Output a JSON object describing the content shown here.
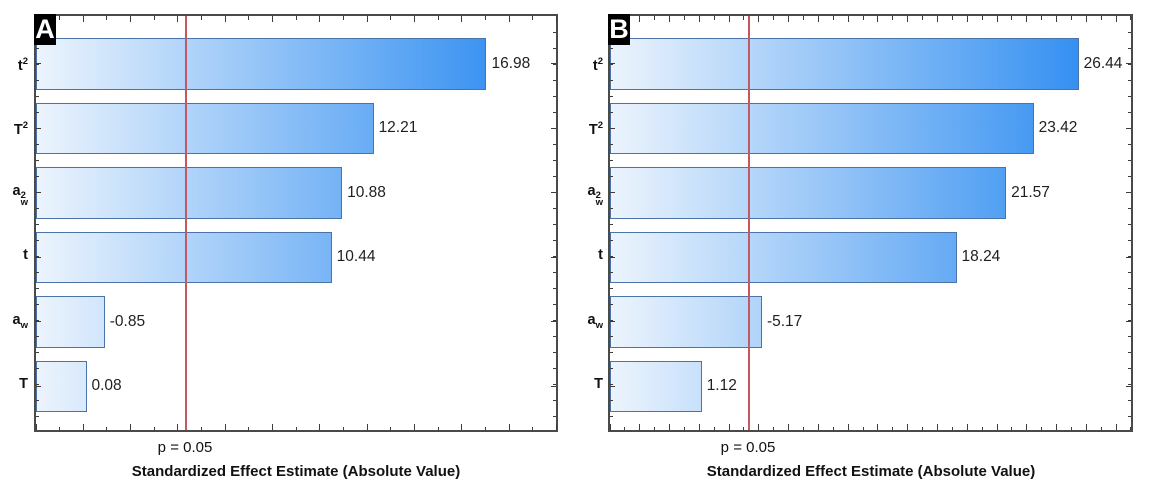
{
  "chart_data": [
    {
      "type": "bar",
      "orientation": "horizontal",
      "panel_label": "A",
      "xlabel": "Standardized Effect Estimate (Absolute Value)",
      "categories": [
        "t^2",
        "T^2",
        "a_w^2",
        "t",
        "a_w",
        "T"
      ],
      "categories_rich": [
        {
          "base": "t",
          "sup": "2"
        },
        {
          "base": "T",
          "sup": "2"
        },
        {
          "base": "a",
          "sub": "w",
          "sup": "2"
        },
        {
          "base": "t"
        },
        {
          "base": "a",
          "sub": "w"
        },
        {
          "base": "T"
        }
      ],
      "values": [
        16.98,
        12.21,
        10.88,
        10.44,
        -0.85,
        0.08
      ],
      "value_labels": [
        "16.98",
        "12.21",
        "10.88",
        "10.44",
        "-0.85",
        "0.08"
      ],
      "ref_line": {
        "label": "p = 0.05",
        "value": 4.3
      },
      "legend": "none",
      "grid": "off",
      "layout": {
        "bar_base_pct": 9.35,
        "pct_per_unit": 4.551,
        "refline_pct": 28.9,
        "tick_unit_pct": 4.551
      }
    },
    {
      "type": "bar",
      "orientation": "horizontal",
      "panel_label": "B",
      "xlabel": "Standardized Effect Estimate (Absolute Value)",
      "categories": [
        "t^2",
        "T^2",
        "a_w^2",
        "t",
        "a_w",
        "T"
      ],
      "categories_rich": [
        {
          "base": "t",
          "sup": "2"
        },
        {
          "base": "T",
          "sup": "2"
        },
        {
          "base": "a",
          "sub": "w",
          "sup": "2"
        },
        {
          "base": "t"
        },
        {
          "base": "a",
          "sub": "w"
        },
        {
          "base": "T"
        }
      ],
      "values": [
        26.44,
        23.42,
        21.57,
        18.24,
        -5.17,
        1.12
      ],
      "value_labels": [
        "26.44",
        "23.42",
        "21.57",
        "18.24",
        "-5.17",
        "1.12"
      ],
      "ref_line": {
        "label": "p = 0.05",
        "value": 4.3
      },
      "legend": "none",
      "grid": "off",
      "layout": {
        "bar_base_pct": 14.4,
        "pct_per_unit": 2.857,
        "refline_pct": 26.6,
        "tick_unit_pct": 2.857
      }
    }
  ],
  "colors": {
    "bar_gradient_start": "#ecf4fd",
    "bar_gradient_end": "#2185f0",
    "bar_border": "#4a74a8",
    "reference_line": "#c25864",
    "frame_border": "#4a4a4a",
    "tick": "#3c3c3c",
    "value_text": "#1f1f1f",
    "badge_bg": "#000000",
    "badge_text": "#ffffff"
  }
}
